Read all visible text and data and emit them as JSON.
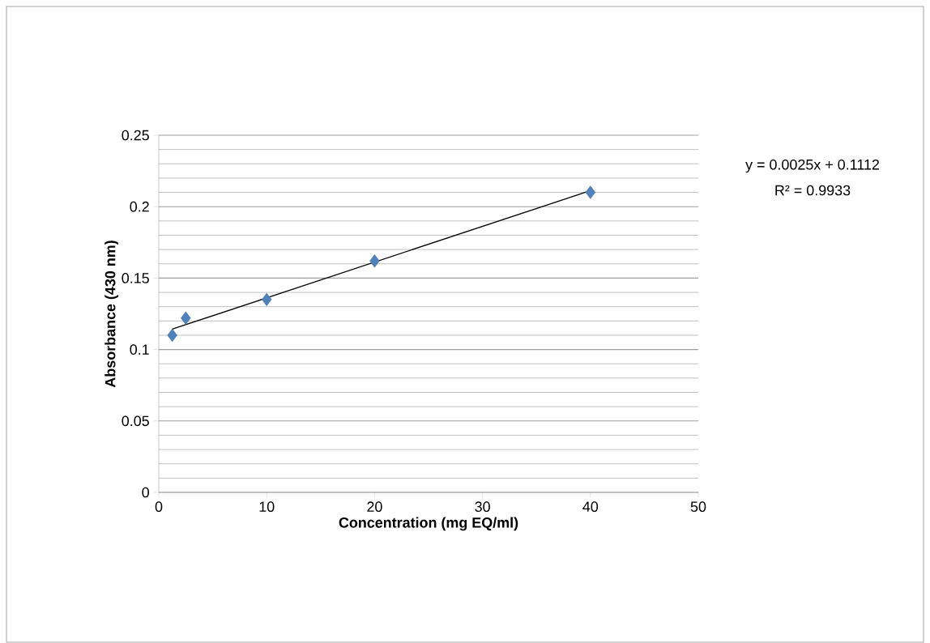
{
  "chart_data": {
    "type": "scatter",
    "xlabel": "Concentration (mg EQ/ml)",
    "ylabel": "Absorbance (430 nm)",
    "xlim": [
      0,
      50
    ],
    "xticks": [
      0,
      10,
      20,
      30,
      40,
      50
    ],
    "ylim": [
      0,
      0.25
    ],
    "yticks": [
      0,
      0.05,
      0.1,
      0.15,
      0.2,
      0.25
    ],
    "grid": "y",
    "series": [
      {
        "marker": "diamond",
        "color": "#4f81bd",
        "x": [
          1.25,
          2.5,
          10,
          20,
          40
        ],
        "values": [
          0.11,
          0.122,
          0.135,
          0.162,
          0.21
        ]
      },
      {
        "type": "line",
        "marker": "none",
        "color": "#000000",
        "x": [
          1.25,
          40
        ],
        "values": [
          0.1143,
          0.2112
        ]
      }
    ],
    "annotations": [
      "y = 0.0025x + 0.1112",
      "R² = 0.9933"
    ]
  }
}
